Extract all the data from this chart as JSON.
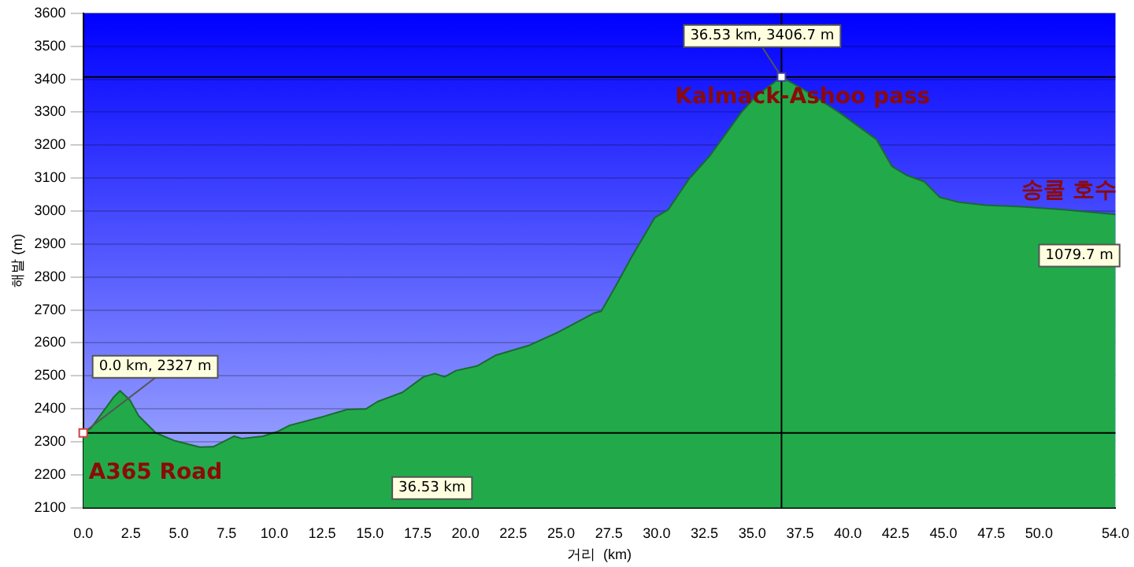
{
  "chart_data": {
    "type": "area",
    "xlabel": "거리  (km)",
    "ylabel": "해발 (m)",
    "x": [
      0,
      0.4,
      1.6,
      1.93,
      2.45,
      2.9,
      3.8,
      4.8,
      6.1,
      6.8,
      7.9,
      8.3,
      9.4,
      10.2,
      10.8,
      12.4,
      13.8,
      14.8,
      15.4,
      16.7,
      17.8,
      18.4,
      18.9,
      19.5,
      20.6,
      21.6,
      23.3,
      24.9,
      26.7,
      27.1,
      27.9,
      28.7,
      29.9,
      30.6,
      31.7,
      32.8,
      34.4,
      35.2,
      36.53,
      37.7,
      39.6,
      41.5,
      42.3,
      43.1,
      44.0,
      44.8,
      45.8,
      47.2,
      49.1,
      51.3,
      54.0
    ],
    "series": [
      {
        "color": "#22aa4a",
        "values": [
          2327,
          2341,
          2436,
          2455,
          2426,
          2379,
          2327,
          2303,
          2284,
          2285,
          2317,
          2310,
          2317,
          2332,
          2350,
          2374,
          2398,
          2400,
          2422,
          2450,
          2497,
          2507,
          2497,
          2516,
          2530,
          2563,
          2592,
          2634,
          2690,
          2696,
          2777,
          2862,
          2980,
          3004,
          3098,
          3169,
          3297,
          3349,
          3406.7,
          3368,
          3297,
          3217,
          3136,
          3108,
          3089,
          3042,
          3027,
          3018,
          3013,
          3004,
          2990
        ]
      }
    ],
    "xlim": [
      0,
      54
    ],
    "xticks": [
      {
        "value": 0,
        "label": "0.0"
      },
      {
        "value": 2.5,
        "label": "2.5"
      },
      {
        "value": 5,
        "label": "5.0"
      },
      {
        "value": 7.5,
        "label": "7.5"
      },
      {
        "value": 10,
        "label": "10.0"
      },
      {
        "value": 12.5,
        "label": "12.5"
      },
      {
        "value": 15,
        "label": "15.0"
      },
      {
        "value": 17.5,
        "label": "17.5"
      },
      {
        "value": 20,
        "label": "20.0"
      },
      {
        "value": 22.5,
        "label": "22.5"
      },
      {
        "value": 25,
        "label": "25.0"
      },
      {
        "value": 27.5,
        "label": "27.5"
      },
      {
        "value": 30,
        "label": "30.0"
      },
      {
        "value": 32.5,
        "label": "32.5"
      },
      {
        "value": 35,
        "label": "35.0"
      },
      {
        "value": 37.5,
        "label": "37.5"
      },
      {
        "value": 40,
        "label": "40.0"
      },
      {
        "value": 42.5,
        "label": "42.5"
      },
      {
        "value": 45,
        "label": "45.0"
      },
      {
        "value": 47.5,
        "label": "47.5"
      },
      {
        "value": 50,
        "label": "50.0"
      },
      {
        "value": 54,
        "label": "54.0"
      }
    ],
    "ylim": [
      2100,
      3600
    ],
    "yticks": [
      2100,
      2200,
      2300,
      2400,
      2500,
      2600,
      2700,
      2800,
      2900,
      3000,
      3100,
      3200,
      3300,
      3400,
      3500,
      3600
    ],
    "grid": "y",
    "legend": false,
    "marker": "none",
    "ref_lines": [
      {
        "axis": "y",
        "value": 3406.7,
        "color": "#000000"
      },
      {
        "axis": "y",
        "value": 2327,
        "color": "#000000"
      },
      {
        "axis": "x",
        "value": 36.53,
        "color": "#000000"
      }
    ],
    "annotations": [
      {
        "text": "0.0 km, 2327 m",
        "x": 0,
        "y": 2327
      },
      {
        "text": "36.53 km, 3406.7 m",
        "x": 36.53,
        "y": 3406.7
      },
      "Kalmack-Ashoo pass",
      "송쿨 호수",
      "A365 Road",
      "1079.7 m",
      "36.53 km"
    ]
  }
}
